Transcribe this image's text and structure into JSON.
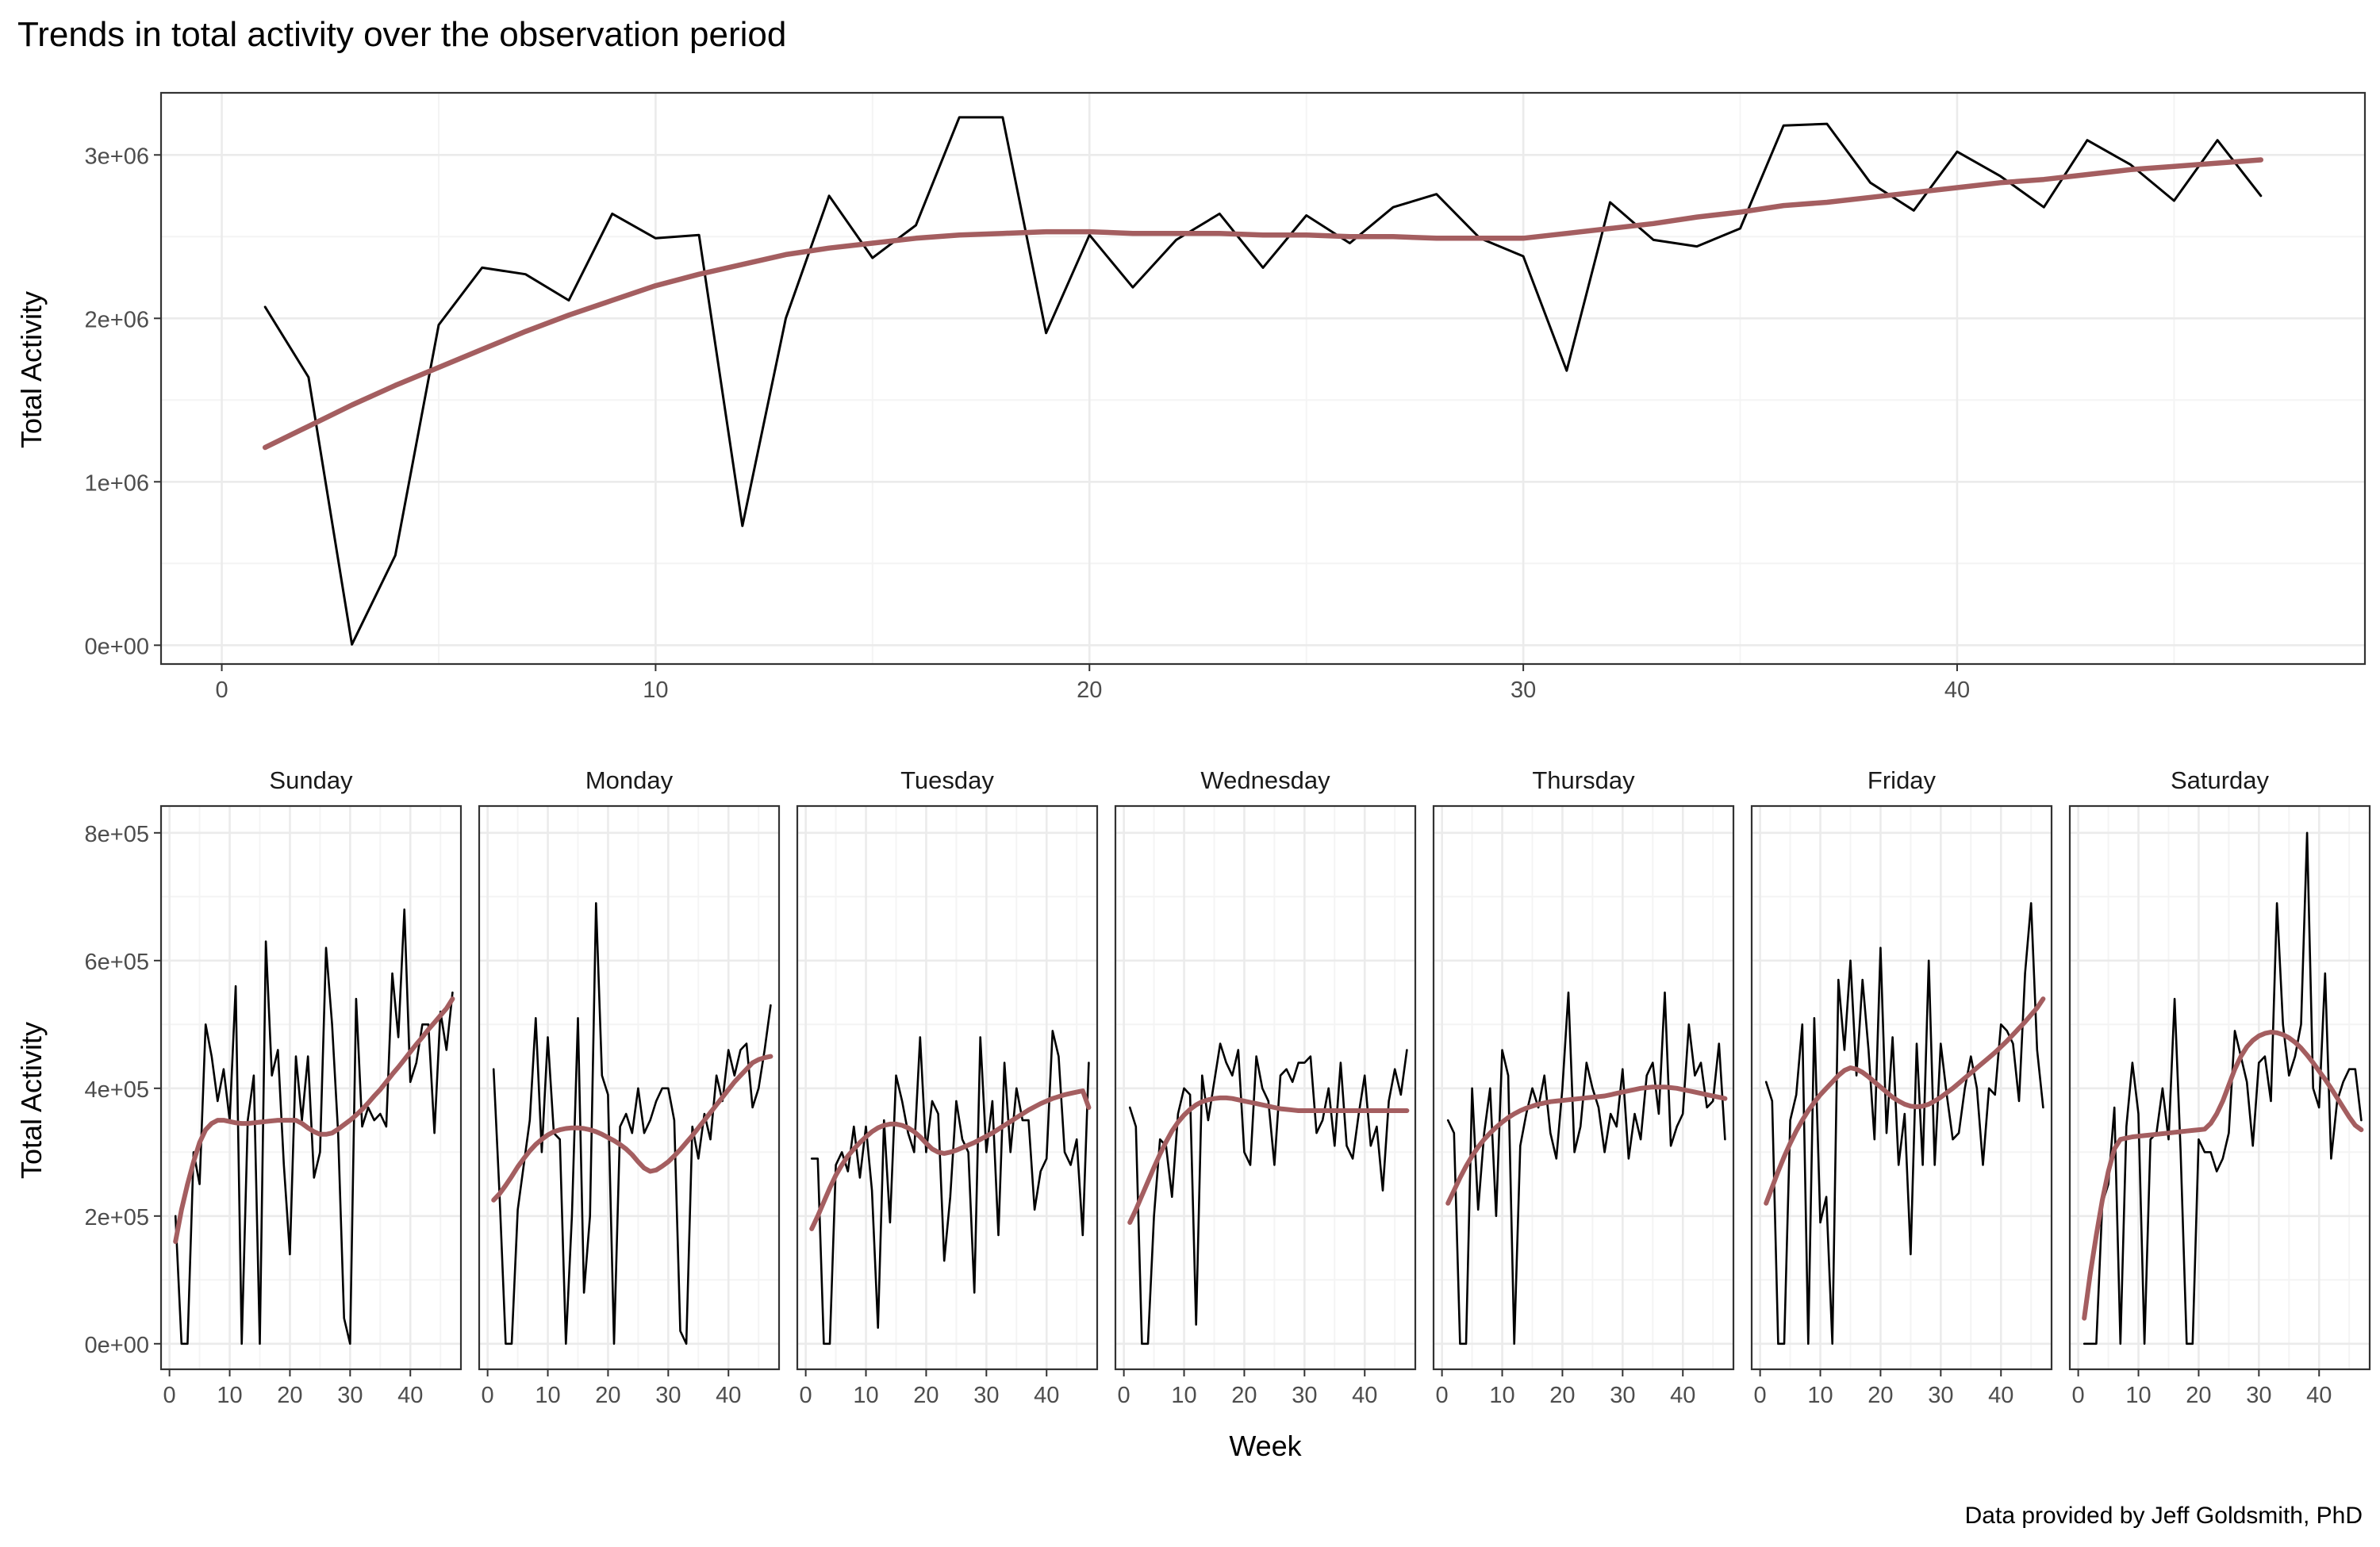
{
  "title": "Trends in total activity over the observation period",
  "caption": "Data provided by Jeff Goldsmith, PhD",
  "colors": {
    "line": "#000000",
    "smooth": "#A45E60",
    "panel_border": "#333333",
    "grid_major": "#EBEBEB",
    "grid_minor": "#F4F4F4",
    "tick_text": "#4D4D4D",
    "background": "#FFFFFF"
  },
  "chart_data": [
    {
      "type": "line",
      "name": "overall",
      "xlabel": "",
      "ylabel": "Total Activity",
      "xlim": [
        -1.4,
        49.4
      ],
      "ylim": [
        -115000,
        3380000
      ],
      "x_ticks": [
        0,
        10,
        20,
        30,
        40
      ],
      "x_tick_labels": [
        "0",
        "10",
        "20",
        "30",
        "40"
      ],
      "y_ticks": [
        0,
        1000000,
        2000000,
        3000000
      ],
      "y_tick_labels": [
        "0e+00",
        "1e+06",
        "2e+06",
        "3e+06"
      ],
      "grid": true,
      "x": [
        1,
        2,
        3,
        4,
        5,
        6,
        7,
        8,
        9,
        10,
        11,
        12,
        13,
        14,
        15,
        16,
        17,
        18,
        19,
        20,
        21,
        22,
        23,
        24,
        25,
        26,
        27,
        28,
        29,
        30,
        31,
        32,
        33,
        34,
        35,
        36,
        37,
        38,
        39,
        40,
        41,
        42,
        43,
        44,
        45,
        46,
        47
      ],
      "series": [
        {
          "values": [
            2070000,
            1640000,
            5000,
            550000,
            1960000,
            2310000,
            2270000,
            2110000,
            2640000,
            2490000,
            2510000,
            730000,
            2000000,
            2750000,
            2370000,
            2570000,
            3230000,
            3230000,
            1910000,
            2510000,
            2190000,
            2480000,
            2640000,
            2310000,
            2630000,
            2460000,
            2680000,
            2760000,
            2490000,
            2380000,
            1680000,
            2710000,
            2480000,
            2440000,
            2550000,
            3180000,
            3190000,
            2830000,
            2660000,
            3020000,
            2870000,
            2680000,
            3090000,
            2940000,
            2720000,
            3090000,
            2750000
          ]
        },
        {
          "smooth": true,
          "values": [
            1210000,
            1340000,
            1470000,
            1590000,
            1700000,
            1810000,
            1920000,
            2020000,
            2110000,
            2200000,
            2270000,
            2330000,
            2390000,
            2430000,
            2460000,
            2490000,
            2510000,
            2520000,
            2530000,
            2530000,
            2520000,
            2520000,
            2520000,
            2510000,
            2510000,
            2500000,
            2500000,
            2490000,
            2490000,
            2490000,
            2520000,
            2550000,
            2580000,
            2620000,
            2650000,
            2690000,
            2710000,
            2740000,
            2770000,
            2800000,
            2830000,
            2850000,
            2880000,
            2910000,
            2930000,
            2950000,
            2970000
          ]
        }
      ]
    },
    {
      "type": "line",
      "name": "by-day",
      "xlabel": "Week",
      "ylabel": "Total Activity",
      "xlim": [
        -1.4,
        48.4
      ],
      "ylim": [
        -40000,
        842000
      ],
      "x_ticks": [
        0,
        10,
        20,
        30,
        40
      ],
      "x_tick_labels": [
        "0",
        "10",
        "20",
        "30",
        "40"
      ],
      "y_ticks": [
        0,
        200000,
        400000,
        600000,
        800000
      ],
      "y_tick_labels": [
        "0e+00",
        "2e+05",
        "4e+05",
        "6e+05",
        "8e+05"
      ],
      "grid": true,
      "x": [
        1,
        2,
        3,
        4,
        5,
        6,
        7,
        8,
        9,
        10,
        11,
        12,
        13,
        14,
        15,
        16,
        17,
        18,
        19,
        20,
        21,
        22,
        23,
        24,
        25,
        26,
        27,
        28,
        29,
        30,
        31,
        32,
        33,
        34,
        35,
        36,
        37,
        38,
        39,
        40,
        41,
        42,
        43,
        44,
        45,
        46,
        47
      ],
      "facets": [
        {
          "label": "Sunday",
          "values": [
            200000,
            0,
            0,
            300000,
            250000,
            500000,
            450000,
            380000,
            430000,
            350000,
            560000,
            0,
            350000,
            420000,
            0,
            630000,
            420000,
            460000,
            280000,
            140000,
            450000,
            350000,
            450000,
            260000,
            300000,
            620000,
            500000,
            330000,
            40000,
            0,
            540000,
            340000,
            370000,
            350000,
            360000,
            340000,
            580000,
            480000,
            680000,
            410000,
            440000,
            500000,
            500000,
            330000,
            520000,
            460000,
            550000
          ],
          "smooth": [
            160000,
            210000,
            250000,
            285000,
            315000,
            335000,
            345000,
            350000,
            350000,
            348000,
            346000,
            345000,
            345000,
            346000,
            347000,
            348000,
            349000,
            350000,
            350000,
            350000,
            350000,
            345000,
            338000,
            332000,
            328000,
            328000,
            330000,
            336000,
            343000,
            350000,
            358000,
            367000,
            377000,
            388000,
            398000,
            410000,
            422000,
            433000,
            445000,
            457000,
            469000,
            480000,
            492000,
            503000,
            514000,
            525000,
            540000
          ]
        },
        {
          "label": "Monday",
          "values": [
            430000,
            230000,
            0,
            0,
            210000,
            280000,
            350000,
            510000,
            300000,
            480000,
            330000,
            320000,
            0,
            200000,
            510000,
            80000,
            200000,
            690000,
            420000,
            390000,
            0,
            340000,
            360000,
            330000,
            400000,
            330000,
            350000,
            380000,
            400000,
            400000,
            350000,
            20000,
            0,
            340000,
            290000,
            360000,
            320000,
            420000,
            380000,
            460000,
            420000,
            460000,
            470000,
            370000,
            400000,
            460000,
            530000
          ],
          "smooth": [
            225000,
            235000,
            248000,
            262000,
            277000,
            290000,
            302000,
            312000,
            320000,
            327000,
            332000,
            335000,
            337000,
            338000,
            338000,
            337000,
            335000,
            332000,
            328000,
            323000,
            318000,
            312000,
            305000,
            296000,
            285000,
            275000,
            270000,
            272000,
            278000,
            285000,
            294000,
            304000,
            315000,
            326000,
            338000,
            350000,
            362000,
            374000,
            386000,
            398000,
            410000,
            420000,
            430000,
            440000,
            445000,
            448000,
            450000
          ]
        },
        {
          "label": "Tuesday",
          "values": [
            290000,
            290000,
            0,
            0,
            280000,
            300000,
            270000,
            340000,
            260000,
            340000,
            240000,
            25000,
            350000,
            190000,
            420000,
            380000,
            330000,
            300000,
            480000,
            300000,
            380000,
            360000,
            130000,
            230000,
            380000,
            320000,
            300000,
            80000,
            480000,
            300000,
            380000,
            170000,
            440000,
            300000,
            400000,
            350000,
            350000,
            210000,
            270000,
            290000,
            490000,
            450000,
            300000,
            280000,
            320000,
            170000,
            440000
          ],
          "smooth": [
            180000,
            200000,
            222000,
            244000,
            264000,
            280000,
            294000,
            305000,
            315000,
            324000,
            332000,
            338000,
            342000,
            344000,
            344000,
            342000,
            338000,
            332000,
            324000,
            314000,
            305000,
            300000,
            298000,
            300000,
            303000,
            307000,
            311000,
            315000,
            320000,
            325000,
            330000,
            336000,
            342000,
            348000,
            354000,
            360000,
            366000,
            371000,
            376000,
            380000,
            384000,
            387000,
            390000,
            392000,
            394000,
            396000,
            370000
          ]
        },
        {
          "label": "Wednesday",
          "values": [
            370000,
            340000,
            0,
            0,
            200000,
            320000,
            310000,
            230000,
            360000,
            400000,
            390000,
            30000,
            420000,
            350000,
            410000,
            470000,
            440000,
            420000,
            460000,
            300000,
            280000,
            450000,
            400000,
            380000,
            280000,
            420000,
            430000,
            410000,
            440000,
            440000,
            450000,
            330000,
            350000,
            400000,
            310000,
            440000,
            310000,
            290000,
            360000,
            420000,
            310000,
            340000,
            240000,
            380000,
            430000,
            390000,
            460000
          ],
          "smooth": [
            190000,
            210000,
            232000,
            254000,
            276000,
            297000,
            316000,
            333000,
            347000,
            358000,
            367000,
            374000,
            379000,
            382000,
            384000,
            385000,
            385000,
            384000,
            382000,
            380000,
            378000,
            376000,
            374000,
            372000,
            370000,
            368000,
            367000,
            366000,
            365000,
            365000,
            365000,
            365000,
            365000,
            365000,
            365000,
            365000,
            365000,
            365000,
            365000,
            365000,
            365000,
            365000,
            365000,
            365000,
            365000,
            365000,
            365000
          ]
        },
        {
          "label": "Thursday",
          "values": [
            350000,
            330000,
            0,
            0,
            400000,
            210000,
            330000,
            400000,
            200000,
            460000,
            420000,
            0,
            310000,
            360000,
            400000,
            370000,
            420000,
            330000,
            290000,
            400000,
            550000,
            300000,
            340000,
            440000,
            400000,
            370000,
            300000,
            360000,
            340000,
            430000,
            290000,
            360000,
            320000,
            420000,
            440000,
            360000,
            550000,
            310000,
            340000,
            360000,
            500000,
            420000,
            440000,
            370000,
            380000,
            470000,
            320000
          ],
          "smooth": [
            220000,
            240000,
            260000,
            278000,
            294000,
            308000,
            320000,
            330000,
            339000,
            347000,
            354000,
            360000,
            365000,
            369000,
            372000,
            375000,
            377000,
            379000,
            380000,
            381000,
            382000,
            383000,
            384000,
            385000,
            386000,
            387000,
            388000,
            390000,
            392000,
            394000,
            396000,
            398000,
            400000,
            401000,
            402000,
            402000,
            402000,
            401000,
            400000,
            398000,
            396000,
            394000,
            392000,
            390000,
            388000,
            386000,
            384000
          ]
        },
        {
          "label": "Friday",
          "values": [
            410000,
            380000,
            0,
            0,
            350000,
            390000,
            500000,
            0,
            510000,
            190000,
            230000,
            0,
            570000,
            460000,
            600000,
            420000,
            570000,
            460000,
            320000,
            620000,
            330000,
            480000,
            280000,
            360000,
            140000,
            470000,
            280000,
            600000,
            280000,
            470000,
            390000,
            320000,
            330000,
            400000,
            450000,
            400000,
            280000,
            400000,
            390000,
            500000,
            490000,
            470000,
            380000,
            580000,
            690000,
            460000,
            370000
          ],
          "smooth": [
            220000,
            245000,
            270000,
            293000,
            314000,
            333000,
            350000,
            365000,
            378000,
            390000,
            400000,
            410000,
            420000,
            428000,
            432000,
            430000,
            425000,
            418000,
            410000,
            402000,
            394000,
            386000,
            380000,
            375000,
            372000,
            371000,
            372000,
            375000,
            380000,
            386000,
            393000,
            400000,
            408000,
            416000,
            424000,
            432000,
            440000,
            448000,
            456000,
            465000,
            474000,
            484000,
            494000,
            504000,
            515000,
            526000,
            540000
          ]
        },
        {
          "label": "Saturday",
          "values": [
            0,
            0,
            0,
            220000,
            250000,
            370000,
            0,
            340000,
            440000,
            360000,
            0,
            320000,
            330000,
            400000,
            320000,
            540000,
            300000,
            0,
            0,
            320000,
            300000,
            300000,
            270000,
            290000,
            330000,
            490000,
            450000,
            410000,
            310000,
            440000,
            450000,
            380000,
            690000,
            500000,
            420000,
            450000,
            500000,
            800000,
            400000,
            370000,
            580000,
            290000,
            380000,
            410000,
            430000,
            430000,
            350000
          ],
          "smooth": [
            40000,
            110000,
            170000,
            225000,
            270000,
            305000,
            320000,
            322000,
            324000,
            325000,
            326000,
            327000,
            328000,
            329000,
            330000,
            331000,
            332000,
            333000,
            334000,
            335000,
            336000,
            345000,
            360000,
            380000,
            405000,
            430000,
            450000,
            465000,
            475000,
            482000,
            486000,
            488000,
            487000,
            484000,
            479000,
            472000,
            463000,
            452000,
            440000,
            427000,
            414000,
            400000,
            385000,
            370000,
            355000,
            342000,
            335000
          ]
        }
      ]
    }
  ]
}
